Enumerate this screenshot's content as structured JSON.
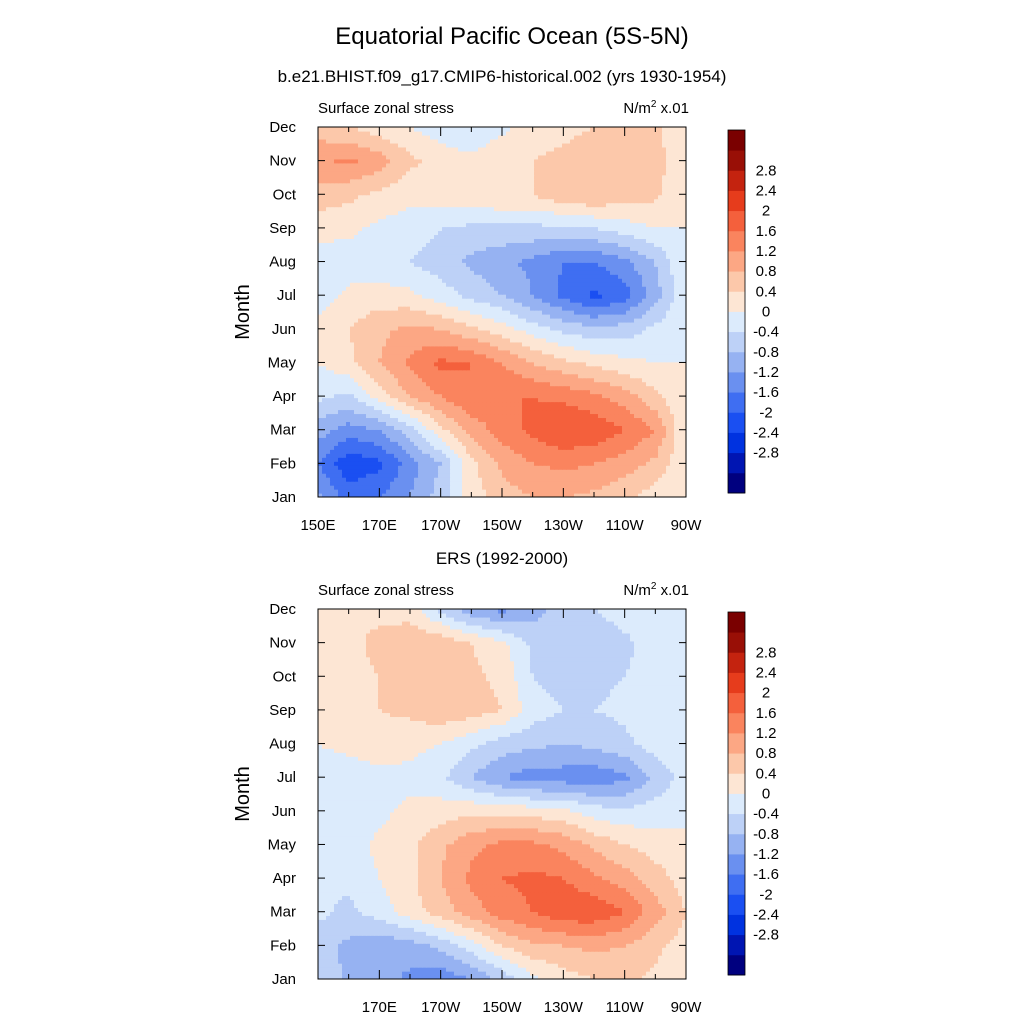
{
  "figure": {
    "title": "Equatorial Pacific Ocean (5S-5N)"
  },
  "palette": [
    "#00007f",
    "#0015b2",
    "#0032e0",
    "#1a4ff2",
    "#3f6ef2",
    "#6a90f0",
    "#96b2f2",
    "#bdd1f7",
    "#dcebfc",
    "#fde6d4",
    "#fcc8aa",
    "#fca784",
    "#fa845e",
    "#f4603c",
    "#e63c1c",
    "#c4230f",
    "#990f06",
    "#7a0000"
  ],
  "colorbar_labels": [
    "-2.8",
    "-2.4",
    "-2",
    "-1.6",
    "-1.2",
    "-0.8",
    "-0.4",
    "0",
    "0.4",
    "0.8",
    "1.2",
    "1.6",
    "2",
    "2.4",
    "2.8"
  ],
  "chart_data": [
    {
      "type": "heatmap",
      "title": "b.e21.BHIST.f09_g17.CMIP6-historical.002 (yrs 1930-1954)",
      "left_label": "Surface zonal stress",
      "right_label": "N/m",
      "right_label_sup": "2",
      "right_label_suffix": " x.01",
      "ylabel": "Month",
      "xlim": [
        150,
        270
      ],
      "x_ticks": [
        "150E",
        "170E",
        "170W",
        "150W",
        "130W",
        "110W",
        "90W"
      ],
      "y_ticks": [
        "Jan",
        "Feb",
        "Mar",
        "Apr",
        "May",
        "Jun",
        "Jul",
        "Aug",
        "Sep",
        "Oct",
        "Nov",
        "Dec"
      ],
      "x": [
        150,
        160,
        170,
        180,
        190,
        200,
        210,
        220,
        230,
        240,
        250,
        260,
        270
      ],
      "y": [
        "Jan",
        "Feb",
        "Mar",
        "Apr",
        "May",
        "Jun",
        "Jul",
        "Aug",
        "Sep",
        "Oct",
        "Nov",
        "Dec"
      ],
      "z": [
        [
          -1.1,
          -1.8,
          -1.6,
          -1.2,
          -0.6,
          0.2,
          0.6,
          0.8,
          0.8,
          0.7,
          0.5,
          0.2,
          0.0
        ],
        [
          -1.6,
          -2.3,
          -2.1,
          -1.4,
          -0.8,
          0.3,
          0.9,
          1.2,
          1.3,
          1.2,
          1.0,
          0.7,
          0.0
        ],
        [
          -1.0,
          -1.4,
          -1.2,
          -0.6,
          0.3,
          0.9,
          1.4,
          1.7,
          2.0,
          1.9,
          1.6,
          1.2,
          0.0
        ],
        [
          -0.3,
          -0.5,
          0.2,
          0.8,
          1.2,
          1.6,
          1.6,
          1.6,
          1.5,
          1.3,
          1.0,
          0.5,
          0.0
        ],
        [
          0.0,
          0.3,
          0.8,
          1.3,
          1.7,
          1.6,
          1.2,
          0.8,
          0.5,
          0.3,
          0.1,
          0.0,
          0.0
        ],
        [
          0.1,
          0.4,
          0.7,
          0.9,
          0.8,
          0.5,
          0.2,
          -0.2,
          -0.5,
          -0.7,
          -0.6,
          -0.3,
          0.0
        ],
        [
          -0.2,
          0.1,
          0.2,
          0.1,
          -0.2,
          -0.5,
          -0.8,
          -1.2,
          -1.7,
          -2.1,
          -1.8,
          -1.0,
          0.0
        ],
        [
          -0.3,
          -0.2,
          -0.3,
          -0.4,
          -0.6,
          -0.9,
          -1.1,
          -1.3,
          -1.6,
          -1.6,
          -1.3,
          -0.8,
          0.0
        ],
        [
          0.2,
          0.1,
          -0.1,
          -0.2,
          -0.4,
          -0.5,
          -0.5,
          -0.5,
          -0.5,
          -0.4,
          -0.2,
          0.0,
          0.0
        ],
        [
          0.6,
          0.5,
          0.3,
          0.1,
          0.2,
          0.3,
          0.4,
          0.4,
          0.7,
          0.8,
          0.6,
          0.5,
          0.0
        ],
        [
          1.1,
          1.3,
          1.0,
          0.5,
          0.2,
          0.1,
          0.3,
          0.4,
          0.5,
          0.6,
          0.6,
          0.6,
          0.0
        ],
        [
          0.6,
          0.4,
          0.2,
          0.0,
          -0.2,
          -0.3,
          -0.1,
          0.2,
          0.3,
          0.4,
          0.5,
          0.5,
          0.0
        ]
      ]
    },
    {
      "type": "heatmap",
      "title": "ERS (1992-2000)",
      "left_label": "Surface zonal stress",
      "right_label": "N/m",
      "right_label_sup": "2",
      "right_label_suffix": " x.01",
      "ylabel": "Month",
      "xlim": [
        150,
        270
      ],
      "x_ticks": [
        "",
        "170E",
        "170W",
        "150W",
        "130W",
        "110W",
        "90W"
      ],
      "y_ticks": [
        "Jan",
        "Feb",
        "Mar",
        "Apr",
        "May",
        "Jun",
        "Jul",
        "Aug",
        "Sep",
        "Oct",
        "Nov",
        "Dec"
      ],
      "x": [
        150,
        160,
        170,
        180,
        190,
        200,
        210,
        220,
        230,
        240,
        250,
        260,
        270
      ],
      "y": [
        "Jan",
        "Feb",
        "Mar",
        "Apr",
        "May",
        "Jun",
        "Jul",
        "Aug",
        "Sep",
        "Oct",
        "Nov",
        "Dec"
      ],
      "z": [
        [
          -0.5,
          -0.9,
          -1.0,
          -1.3,
          -1.5,
          -1.2,
          -0.7,
          -0.1,
          0.2,
          0.4,
          0.5,
          0.3,
          0.1
        ],
        [
          -0.6,
          -0.9,
          -1.1,
          -1.0,
          -0.7,
          -0.2,
          0.4,
          0.7,
          0.8,
          0.9,
          0.8,
          0.5,
          0.2
        ],
        [
          -0.3,
          -0.5,
          -0.2,
          0.2,
          0.6,
          1.0,
          1.4,
          1.6,
          1.9,
          1.9,
          1.6,
          1.0,
          0.4
        ],
        [
          -0.4,
          -0.3,
          0.0,
          0.3,
          0.8,
          1.3,
          1.6,
          1.7,
          1.6,
          1.3,
          1.0,
          0.6,
          0.2
        ],
        [
          -0.2,
          -0.2,
          0.1,
          0.3,
          0.7,
          1.1,
          1.3,
          1.3,
          1.1,
          0.7,
          0.4,
          0.2,
          0.1
        ],
        [
          -0.4,
          -0.3,
          -0.1,
          0.1,
          0.2,
          0.3,
          0.3,
          0.2,
          0.1,
          -0.2,
          -0.3,
          -0.2,
          -0.1
        ],
        [
          -0.2,
          -0.2,
          -0.1,
          -0.1,
          -0.3,
          -0.8,
          -1.2,
          -1.4,
          -1.4,
          -1.5,
          -1.3,
          -0.7,
          -0.2
        ],
        [
          0.0,
          0.1,
          0.2,
          0.1,
          0.0,
          -0.3,
          -0.6,
          -0.7,
          -0.8,
          -0.7,
          -0.5,
          -0.2,
          -0.1
        ],
        [
          0.2,
          0.3,
          0.4,
          0.5,
          0.7,
          0.6,
          0.4,
          -0.2,
          -0.4,
          -0.4,
          -0.3,
          -0.2,
          -0.1
        ],
        [
          0.2,
          0.3,
          0.4,
          0.5,
          0.6,
          0.5,
          0.3,
          -0.4,
          -0.6,
          -0.5,
          -0.4,
          -0.2,
          0.0
        ],
        [
          0.3,
          0.3,
          0.5,
          0.7,
          0.7,
          0.4,
          0.1,
          -0.5,
          -0.6,
          -0.7,
          -0.5,
          -0.2,
          0.0
        ],
        [
          0.3,
          0.4,
          0.3,
          0.2,
          -0.5,
          -1.1,
          -1.3,
          -1.0,
          -0.6,
          -0.4,
          -0.2,
          -0.1,
          0.0
        ]
      ]
    }
  ]
}
